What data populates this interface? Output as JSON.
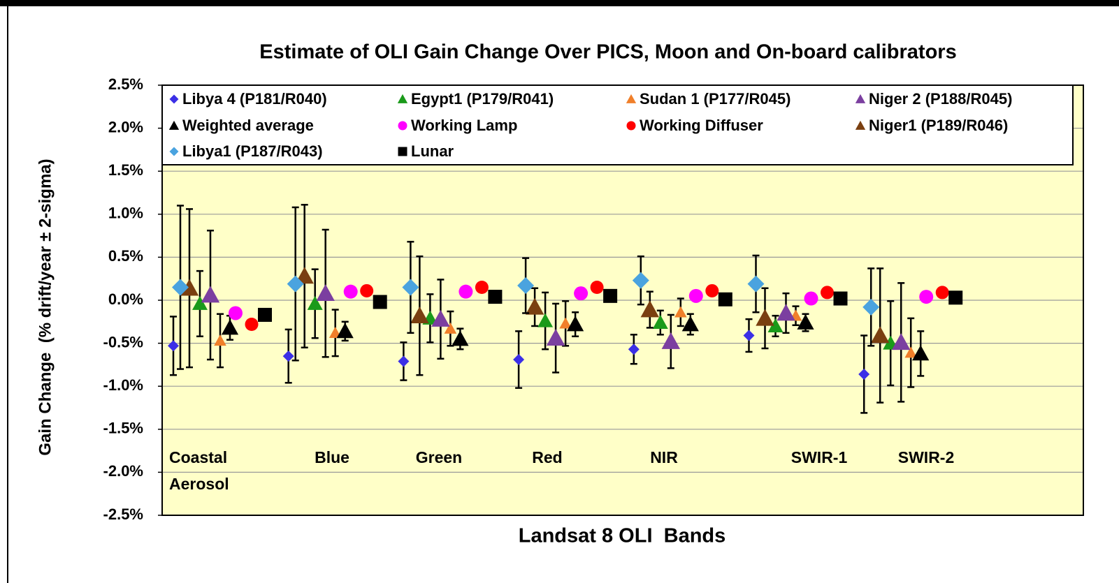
{
  "chart_data": {
    "type": "scatter",
    "title": "Estimate of OLI Gain Change Over PICS, Moon and On-board calibrators",
    "x_label": "Landsat 8 OLI  Bands",
    "y_label": "Gain Change  (% drift/year ± 2-sigma)",
    "categories": [
      "Coastal Aerosol",
      "Blue",
      "Green",
      "Red",
      "NIR",
      "SWIR-1",
      "SWIR-2"
    ],
    "ylim": [
      -2.5,
      2.5
    ],
    "yticks": [
      {
        "value": -2.5,
        "label": "-2.5%"
      },
      {
        "value": -2.0,
        "label": "-2.0%"
      },
      {
        "value": -1.5,
        "label": "-1.5%"
      },
      {
        "value": -1.0,
        "label": "-1.0%"
      },
      {
        "value": -0.5,
        "label": "-0.5%"
      },
      {
        "value": 0.0,
        "label": "0.0%"
      },
      {
        "value": 0.5,
        "label": "0.5%"
      },
      {
        "value": 1.0,
        "label": "1.0%"
      },
      {
        "value": 1.5,
        "label": "1.5%"
      },
      {
        "value": 2.0,
        "label": "2.0%"
      },
      {
        "value": 2.5,
        "label": "2.5%"
      }
    ],
    "grid": true,
    "legend": "top",
    "series": [
      {
        "name": "Libya 4 (P181/R040)",
        "color": "#3b2fe6",
        "marker": "diamond",
        "values": [
          -0.53,
          -0.65,
          -0.71,
          -0.69,
          -0.57,
          -0.41,
          -0.86
        ],
        "errors": [
          0.34,
          0.31,
          0.22,
          0.33,
          0.17,
          0.19,
          0.45
        ]
      },
      {
        "name": "Egypt1 (P179/R041)",
        "color": "#1a9a1a",
        "marker": "triangle",
        "values": [
          -0.04,
          -0.04,
          -0.21,
          -0.24,
          -0.26,
          -0.3,
          -0.5
        ],
        "errors": [
          0.38,
          0.4,
          0.28,
          0.33,
          0.14,
          0.12,
          0.49
        ]
      },
      {
        "name": "Sudan 1 (P177/R045)",
        "color": "#f07f2a",
        "marker": "triangle",
        "values": [
          -0.47,
          -0.38,
          -0.33,
          -0.27,
          -0.14,
          -0.18,
          -0.61
        ],
        "errors": [
          0.31,
          0.27,
          0.2,
          0.26,
          0.16,
          0.11,
          0.4
        ]
      },
      {
        "name": "Niger 2 (P188/R045)",
        "color": "#7b3fa0",
        "marker": "triangle",
        "values": [
          0.06,
          0.08,
          -0.22,
          -0.44,
          -0.48,
          -0.15,
          -0.49
        ],
        "errors": [
          0.75,
          0.74,
          0.46,
          0.4,
          0.31,
          0.23,
          0.69
        ]
      },
      {
        "name": "Weighted average",
        "color": "#000000",
        "marker": "triangle",
        "values": [
          -0.32,
          -0.36,
          -0.45,
          -0.28,
          -0.28,
          -0.26,
          -0.62
        ],
        "errors": [
          0.14,
          0.11,
          0.12,
          0.14,
          0.12,
          0.1,
          0.26
        ]
      },
      {
        "name": "Working Lamp",
        "color": "#ff00ff",
        "marker": "circle",
        "values": [
          -0.15,
          0.1,
          0.1,
          0.08,
          0.05,
          0.02,
          0.04
        ]
      },
      {
        "name": "Working Diffuser",
        "color": "#ff0000",
        "marker": "circle",
        "values": [
          -0.28,
          0.11,
          0.15,
          0.15,
          0.11,
          0.09,
          0.09
        ]
      },
      {
        "name": "Niger1 (P189/R046)",
        "color": "#7a3f10",
        "marker": "triangle",
        "values": [
          0.14,
          0.28,
          -0.18,
          -0.08,
          -0.11,
          -0.21,
          -0.41
        ],
        "errors": [
          0.92,
          0.83,
          0.69,
          0.22,
          0.21,
          0.35,
          0.78
        ]
      },
      {
        "name": "Libya1 (P187/R043)",
        "color": "#4aa3df",
        "marker": "diamond",
        "values": [
          0.15,
          0.19,
          0.15,
          0.17,
          0.23,
          0.19,
          -0.08
        ],
        "errors": [
          0.95,
          0.89,
          0.53,
          0.32,
          0.28,
          0.33,
          0.45
        ]
      },
      {
        "name": "Lunar",
        "color": "#000000",
        "marker": "square",
        "values": [
          -0.17,
          -0.02,
          0.04,
          0.05,
          0.01,
          0.02,
          0.03
        ]
      }
    ]
  }
}
